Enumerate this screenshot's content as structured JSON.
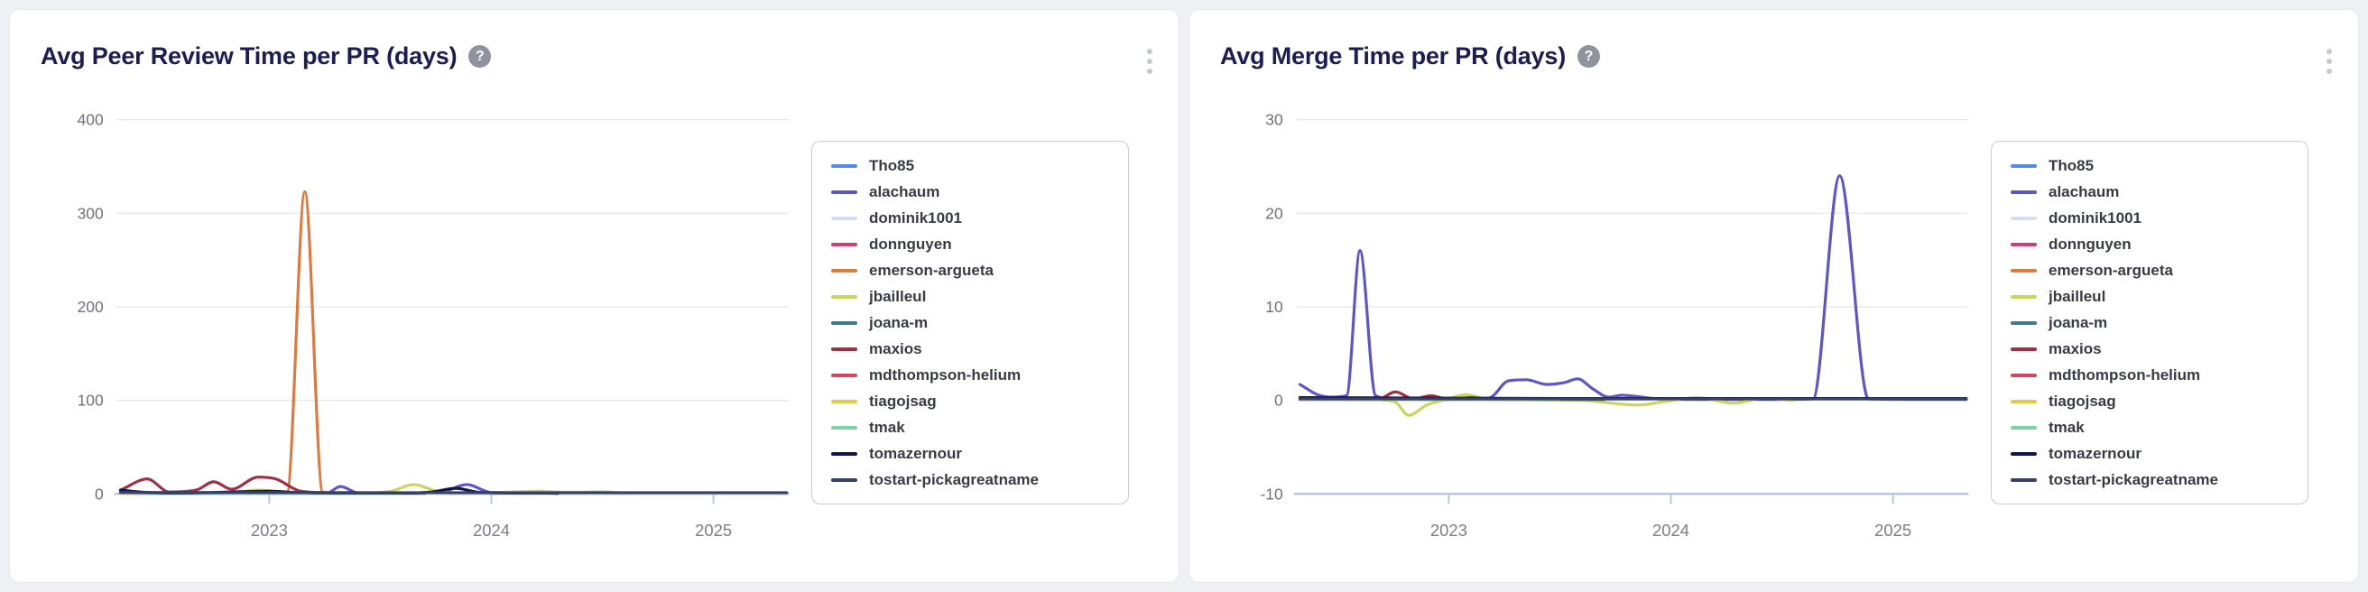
{
  "page": {
    "background": "#eef0f4"
  },
  "cards": [
    {
      "title": "Avg Peer Review Time per PR (days)",
      "help_glyph": "?"
    },
    {
      "title": "Avg Merge Time per PR (days)",
      "help_glyph": "?"
    }
  ],
  "colors": {
    "title_text": "#1c1d52",
    "axis_line": "#bcc5e0",
    "gridline": "#e6e7ea",
    "tick_text": "#6f727b",
    "legend_border": "#c9ccd4",
    "kebab_dots": "#c5c8cf",
    "help_icon_bg": "#8e939d"
  },
  "chart_data": [
    {
      "type": "line",
      "title": "Avg Peer Review Time per PR (days)",
      "xlabel": "",
      "ylabel": "",
      "grid": true,
      "legend_position": "right",
      "xlim": [
        2022.31,
        2025.34
      ],
      "ylim": [
        0,
        400
      ],
      "yticks": [
        0,
        100,
        200,
        300,
        400
      ],
      "xticks": [
        2023,
        2024,
        2025
      ],
      "xtick_labels": [
        "2023",
        "2024",
        "2025"
      ],
      "series": [
        {
          "name": "Tho85",
          "color": "#568ae8",
          "points": [
            [
              2022.33,
              0.8
            ],
            [
              2023.0,
              0.8
            ],
            [
              2023.6,
              0.6
            ]
          ]
        },
        {
          "name": "alachaum",
          "color": "#5e55c8",
          "points": [
            [
              2022.33,
              0.5
            ],
            [
              2022.9,
              0.5
            ],
            [
              2023.1,
              0.8
            ],
            [
              2023.26,
              1
            ],
            [
              2023.32,
              8
            ],
            [
              2023.4,
              1
            ],
            [
              2023.55,
              0.5
            ],
            [
              2023.77,
              1.5
            ],
            [
              2023.89,
              10
            ],
            [
              2024.0,
              1.5
            ],
            [
              2024.15,
              2
            ],
            [
              2024.3,
              0.5
            ]
          ]
        },
        {
          "name": "dominik1001",
          "color": "#d8dbf4",
          "points": [
            [
              2022.33,
              0.4
            ],
            [
              2023.8,
              0.4
            ]
          ]
        },
        {
          "name": "donnguyen",
          "color": "#cf3d72",
          "points": [
            [
              2022.33,
              0.9
            ],
            [
              2023.4,
              0.9
            ]
          ]
        },
        {
          "name": "emerson-argueta",
          "color": "#e0793e",
          "points": [
            [
              2022.9,
              0.8
            ],
            [
              2023.08,
              2
            ],
            [
              2023.16,
              323
            ],
            [
              2023.24,
              2
            ],
            [
              2023.32,
              0.8
            ]
          ]
        },
        {
          "name": "jbailleul",
          "color": "#c8d55f",
          "points": [
            [
              2022.7,
              0.5
            ],
            [
              2022.85,
              2
            ],
            [
              2022.95,
              4
            ],
            [
              2023.08,
              1
            ],
            [
              2023.25,
              0.5
            ],
            [
              2023.45,
              1
            ],
            [
              2023.55,
              3
            ],
            [
              2023.65,
              10
            ],
            [
              2023.77,
              2
            ],
            [
              2023.9,
              1
            ],
            [
              2024.05,
              1.5
            ],
            [
              2024.2,
              3
            ],
            [
              2024.35,
              1.8
            ],
            [
              2024.5,
              2.2
            ],
            [
              2024.62,
              0.5
            ]
          ]
        },
        {
          "name": "joana-m",
          "color": "#40798c",
          "points": [
            [
              2022.33,
              0.6
            ],
            [
              2023.7,
              0.6
            ]
          ]
        },
        {
          "name": "maxios",
          "color": "#9e3147",
          "points": [
            [
              2022.33,
              4
            ],
            [
              2022.45,
              16
            ],
            [
              2022.55,
              2
            ],
            [
              2022.67,
              4
            ],
            [
              2022.75,
              13
            ],
            [
              2022.83,
              5
            ],
            [
              2022.95,
              18
            ],
            [
              2023.03,
              16
            ],
            [
              2023.14,
              3
            ],
            [
              2023.28,
              1
            ]
          ]
        },
        {
          "name": "mdthompson-helium",
          "color": "#d3485f",
          "points": [
            [
              2022.33,
              1
            ],
            [
              2023.3,
              1
            ]
          ]
        },
        {
          "name": "tiagojsag",
          "color": "#e6c944",
          "points": [
            [
              2022.33,
              0.5
            ],
            [
              2023.5,
              0.5
            ]
          ]
        },
        {
          "name": "tmak",
          "color": "#80d2a3",
          "points": [
            [
              2022.4,
              0.4
            ],
            [
              2023.6,
              0.4
            ]
          ]
        },
        {
          "name": "tomazernour",
          "color": "#101647",
          "points": [
            [
              2022.33,
              4
            ],
            [
              2022.42,
              2
            ],
            [
              2022.55,
              1
            ],
            [
              2022.75,
              1.5
            ],
            [
              2022.9,
              2.5
            ],
            [
              2023.0,
              3
            ],
            [
              2023.12,
              1.5
            ],
            [
              2023.35,
              1
            ],
            [
              2023.6,
              1
            ],
            [
              2023.73,
              2
            ],
            [
              2023.84,
              6
            ],
            [
              2023.95,
              1.5
            ],
            [
              2024.1,
              1
            ],
            [
              2024.3,
              1
            ]
          ]
        },
        {
          "name": "tostart-pickagreatname",
          "color": "#364068",
          "points": [
            [
              2022.33,
              1.5
            ],
            [
              2023.5,
              1.3
            ],
            [
              2024.5,
              1.3
            ],
            [
              2025.33,
              1.3
            ]
          ]
        }
      ]
    },
    {
      "type": "line",
      "title": "Avg Merge Time per PR (days)",
      "xlabel": "",
      "ylabel": "",
      "grid": true,
      "legend_position": "right",
      "xlim": [
        2022.31,
        2025.34
      ],
      "ylim": [
        -10,
        30
      ],
      "yticks": [
        -10,
        0,
        10,
        20,
        30
      ],
      "xticks": [
        2023,
        2024,
        2025
      ],
      "xtick_labels": [
        "2023",
        "2024",
        "2025"
      ],
      "series": [
        {
          "name": "Tho85",
          "color": "#568ae8",
          "points": [
            [
              2022.33,
              0.2
            ],
            [
              2023.4,
              0.2
            ]
          ]
        },
        {
          "name": "alachaum",
          "color": "#5e55c8",
          "points": [
            [
              2022.33,
              1.7
            ],
            [
              2022.41,
              0.6
            ],
            [
              2022.48,
              0.35
            ],
            [
              2022.54,
              0.5
            ],
            [
              2022.6,
              16
            ],
            [
              2022.67,
              0.5
            ],
            [
              2022.75,
              0.15
            ],
            [
              2023.0,
              0.15
            ],
            [
              2023.18,
              0.25
            ],
            [
              2023.27,
              2.1
            ],
            [
              2023.35,
              2.2
            ],
            [
              2023.44,
              1.7
            ],
            [
              2023.52,
              1.9
            ],
            [
              2023.58,
              2.3
            ],
            [
              2023.65,
              1.2
            ],
            [
              2023.72,
              0.35
            ],
            [
              2023.78,
              0.55
            ],
            [
              2023.85,
              0.4
            ],
            [
              2023.95,
              0.15
            ],
            [
              2024.2,
              0.1
            ],
            [
              2024.45,
              0.1
            ],
            [
              2024.64,
              0.15
            ],
            [
              2024.76,
              24
            ],
            [
              2024.89,
              0.15
            ],
            [
              2025.1,
              0.1
            ],
            [
              2025.33,
              0.1
            ]
          ]
        },
        {
          "name": "dominik1001",
          "color": "#d8dbf4",
          "points": [
            [
              2022.33,
              0.1
            ],
            [
              2023.8,
              0.1
            ]
          ]
        },
        {
          "name": "donnguyen",
          "color": "#cf3d72",
          "points": [
            [
              2022.33,
              0.2
            ],
            [
              2023.3,
              0.2
            ]
          ]
        },
        {
          "name": "emerson-argueta",
          "color": "#e0793e",
          "points": [
            [
              2022.9,
              0.2
            ],
            [
              2023.3,
              0.2
            ]
          ]
        },
        {
          "name": "jbailleul",
          "color": "#c8d55f",
          "points": [
            [
              2022.7,
              0.05
            ],
            [
              2022.76,
              -0.2
            ],
            [
              2022.82,
              -1.6
            ],
            [
              2022.9,
              -0.5
            ],
            [
              2022.98,
              0.05
            ],
            [
              2023.08,
              0.6
            ],
            [
              2023.18,
              0.1
            ],
            [
              2023.4,
              0.05
            ],
            [
              2023.6,
              0
            ],
            [
              2023.85,
              -0.5
            ],
            [
              2023.98,
              -0.1
            ],
            [
              2024.12,
              0.3
            ],
            [
              2024.28,
              -0.3
            ],
            [
              2024.42,
              0.2
            ],
            [
              2024.55,
              0
            ]
          ]
        },
        {
          "name": "joana-m",
          "color": "#40798c",
          "points": [
            [
              2022.33,
              0.1
            ],
            [
              2023.7,
              0.1
            ]
          ]
        },
        {
          "name": "maxios",
          "color": "#9e3147",
          "points": [
            [
              2022.55,
              0.1
            ],
            [
              2022.68,
              0.1
            ],
            [
              2022.76,
              0.9
            ],
            [
              2022.84,
              0.15
            ],
            [
              2022.92,
              0.5
            ],
            [
              2023.0,
              0.1
            ],
            [
              2023.1,
              0.3
            ],
            [
              2023.2,
              0.1
            ]
          ]
        },
        {
          "name": "mdthompson-helium",
          "color": "#d3485f",
          "points": [
            [
              2022.33,
              0.15
            ],
            [
              2023.3,
              0.15
            ]
          ]
        },
        {
          "name": "tiagojsag",
          "color": "#e6c944",
          "points": [
            [
              2022.33,
              0.1
            ],
            [
              2023.4,
              0.1
            ]
          ]
        },
        {
          "name": "tmak",
          "color": "#80d2a3",
          "points": [
            [
              2022.4,
              0.1
            ],
            [
              2023.5,
              0.1
            ]
          ]
        },
        {
          "name": "tomazernour",
          "color": "#101647",
          "points": [
            [
              2022.33,
              0.3
            ],
            [
              2023.5,
              0.2
            ],
            [
              2025.33,
              0.2
            ]
          ]
        },
        {
          "name": "tostart-pickagreatname",
          "color": "#364068",
          "points": [
            [
              2022.33,
              0.15
            ],
            [
              2025.33,
              0.15
            ]
          ]
        }
      ]
    }
  ]
}
